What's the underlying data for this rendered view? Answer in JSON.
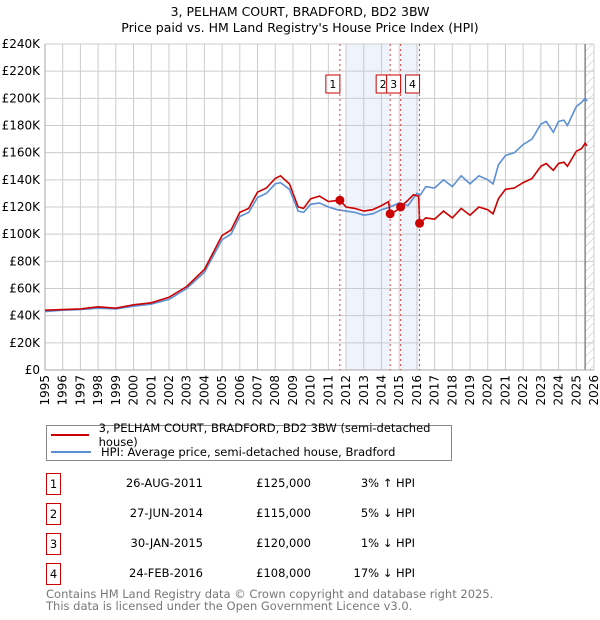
{
  "chart_data": {
    "type": "line",
    "title": "3, PELHAM COURT, BRADFORD, BD2 3BW",
    "subtitle": "Price paid vs. HM Land Registry's House Price Index (HPI)",
    "xlim": [
      1995,
      2026
    ],
    "ylim": [
      0,
      240000
    ],
    "y_ticks": [
      0,
      20000,
      40000,
      60000,
      80000,
      100000,
      120000,
      140000,
      160000,
      180000,
      200000,
      220000,
      240000
    ],
    "y_tick_labels": [
      "£0",
      "£20K",
      "£40K",
      "£60K",
      "£80K",
      "£100K",
      "£120K",
      "£140K",
      "£160K",
      "£180K",
      "£200K",
      "£220K",
      "£240K"
    ],
    "x_ticks": [
      1995,
      1996,
      1997,
      1998,
      1999,
      2000,
      2001,
      2002,
      2003,
      2004,
      2005,
      2006,
      2007,
      2008,
      2009,
      2010,
      2011,
      2012,
      2013,
      2014,
      2015,
      2016,
      2017,
      2018,
      2019,
      2020,
      2021,
      2022,
      2023,
      2024,
      2025,
      2026
    ],
    "x_tick_labels": [
      "1995",
      "1996",
      "1997",
      "1998",
      "1999",
      "2000",
      "2001",
      "2002",
      "2003",
      "2004",
      "2005",
      "2006",
      "2007",
      "2008",
      "2009",
      "2010",
      "2011",
      "2012",
      "2013",
      "2014",
      "2015",
      "2016",
      "2017",
      "2018",
      "2019",
      "2020",
      "2021",
      "2022",
      "2023",
      "2024",
      "2025",
      "2026"
    ],
    "grid": true,
    "shaded_ranges": [
      [
        2012.0,
        2014.49
      ],
      [
        2015.08,
        2016.15
      ]
    ],
    "forecast_from": 2025.5,
    "series": [
      {
        "name": "3, PELHAM COURT, BRADFORD, BD2 3BW (semi-detached house)",
        "color": "#cc0000",
        "x": [
          1995,
          1996,
          1997,
          1998,
          1999,
          2000,
          2001,
          2002,
          2003,
          2004,
          2005,
          2005.5,
          2006,
          2006.5,
          2007,
          2007.5,
          2008,
          2008.3,
          2008.8,
          2009.3,
          2009.6,
          2010,
          2010.5,
          2011,
          2011.65,
          2012,
          2012.5,
          2013,
          2013.5,
          2014,
          2014.4,
          2014.49,
          2014.8,
          2015.08,
          2015.5,
          2015.8,
          2016.1,
          2016.15,
          2016.5,
          2017,
          2017.5,
          2018,
          2018.5,
          2019,
          2019.5,
          2020,
          2020.3,
          2020.6,
          2021,
          2021.5,
          2022,
          2022.5,
          2023,
          2023.3,
          2023.7,
          2024,
          2024.3,
          2024.5,
          2025,
          2025.3,
          2025.5,
          2025.6
        ],
        "y": [
          44000,
          44500,
          45000,
          46500,
          45500,
          48000,
          49500,
          53500,
          61500,
          74000,
          99000,
          103000,
          116000,
          119000,
          131000,
          134000,
          141000,
          143000,
          137000,
          120000,
          119000,
          126000,
          128000,
          124000,
          125000,
          120000,
          119000,
          117000,
          118000,
          121000,
          124000,
          115000,
          117000,
          120000,
          125000,
          129000,
          128000,
          108000,
          112000,
          111000,
          117000,
          112000,
          119000,
          114000,
          120000,
          118000,
          115000,
          126000,
          133000,
          134000,
          138000,
          141000,
          150000,
          152000,
          147000,
          152000,
          153000,
          150000,
          161000,
          163000,
          167000,
          165000
        ]
      },
      {
        "name": "HPI: Average price, semi-detached house, Bradford",
        "color": "#5b8fd4",
        "x": [
          1995,
          1996,
          1997,
          1998,
          1999,
          2000,
          2001,
          2002,
          2003,
          2004,
          2005,
          2005.5,
          2006,
          2006.5,
          2007,
          2007.5,
          2008,
          2008.3,
          2008.8,
          2009.3,
          2009.6,
          2010,
          2010.5,
          2011,
          2011.5,
          2012,
          2012.5,
          2013,
          2013.5,
          2014,
          2014.5,
          2015,
          2015.5,
          2016,
          2016.2,
          2016.5,
          2017,
          2017.5,
          2018,
          2018.5,
          2019,
          2019.5,
          2020,
          2020.3,
          2020.6,
          2021,
          2021.5,
          2022,
          2022.5,
          2023,
          2023.3,
          2023.7,
          2024,
          2024.3,
          2024.5,
          2025,
          2025.3,
          2025.5,
          2025.6
        ],
        "y": [
          43000,
          44000,
          44500,
          45500,
          45000,
          47000,
          48500,
          52000,
          60000,
          72000,
          96000,
          100000,
          113000,
          116000,
          127000,
          130000,
          137000,
          138000,
          133000,
          117000,
          116000,
          122000,
          123000,
          120000,
          118000,
          117000,
          116000,
          114000,
          115000,
          118000,
          120000,
          123000,
          121000,
          130000,
          129000,
          135000,
          134000,
          140000,
          135000,
          143000,
          137000,
          143000,
          140000,
          137000,
          151000,
          158000,
          160000,
          166000,
          170000,
          181000,
          183000,
          175000,
          183000,
          184000,
          180000,
          194000,
          197000,
          200000,
          198000
        ]
      }
    ],
    "sales": [
      {
        "num": "1",
        "x": 2011.65,
        "price": 125000
      },
      {
        "num": "2",
        "x": 2014.49,
        "price": 115000
      },
      {
        "num": "3",
        "x": 2015.08,
        "price": 120000
      },
      {
        "num": "4",
        "x": 2016.15,
        "price": 108000
      }
    ]
  },
  "legend": {
    "property": "3, PELHAM COURT, BRADFORD, BD2 3BW (semi-detached house)",
    "hpi": "HPI: Average price, semi-detached house, Bradford"
  },
  "table": [
    {
      "num": "1",
      "date": "26-AUG-2011",
      "price": "£125,000",
      "hpi": "3% ↑ HPI"
    },
    {
      "num": "2",
      "date": "27-JUN-2014",
      "price": "£115,000",
      "hpi": "5% ↓ HPI"
    },
    {
      "num": "3",
      "date": "30-JAN-2015",
      "price": "£120,000",
      "hpi": "1% ↓ HPI"
    },
    {
      "num": "4",
      "date": "24-FEB-2016",
      "price": "£108,000",
      "hpi": "17% ↓ HPI"
    }
  ],
  "footer": {
    "line1": "Contains HM Land Registry data © Crown copyright and database right 2025.",
    "line2": "This data is licensed under the Open Government Licence v3.0."
  },
  "colors": {
    "property": "#cc0000",
    "hpi": "#5b8fd4",
    "shade": "#eef3fc",
    "grid": "#cccccc"
  }
}
